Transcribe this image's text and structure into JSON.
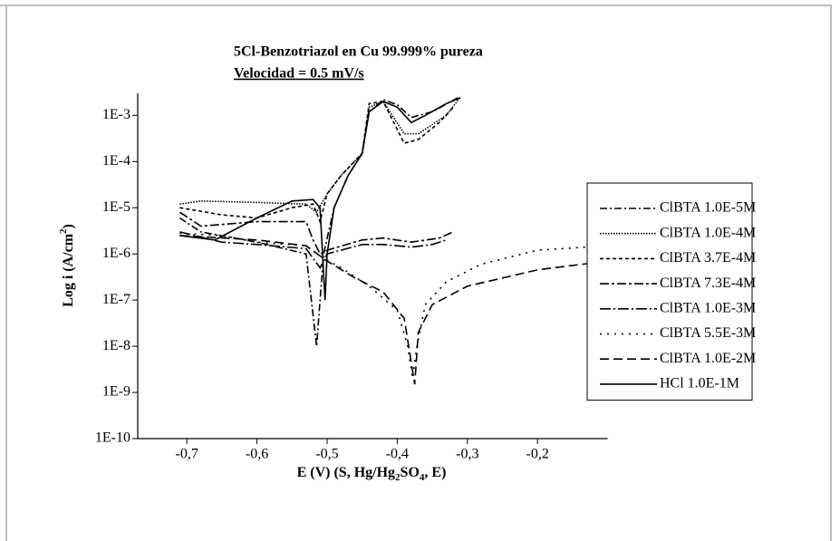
{
  "chart_data": {
    "type": "line",
    "title": "5Cl-Benzotriazol en Cu 99.999% pureza",
    "subtitle": "Velocidad = 0.5 mV/s",
    "xlabel": [
      "E (V) (S, Hg/Hg",
      "2",
      "SO",
      "4",
      ", E)"
    ],
    "ylabel": [
      "Log i (A/cm",
      "2",
      ")"
    ],
    "xlim": [
      -0.77,
      -0.1
    ],
    "ylim": [
      1e-10,
      0.003
    ],
    "log_y": true,
    "legend": "right",
    "xticks": [
      {
        "value": -0.7,
        "label": "-0,7"
      },
      {
        "value": -0.6,
        "label": "-0,6"
      },
      {
        "value": -0.5,
        "label": "-0,5"
      },
      {
        "value": -0.4,
        "label": "-0,4"
      },
      {
        "value": -0.3,
        "label": "-0,3"
      },
      {
        "value": -0.2,
        "label": "-0,2"
      }
    ],
    "yticks": [
      {
        "value": 0.001,
        "label": "1E-3"
      },
      {
        "value": 0.0001,
        "label": "1E-4"
      },
      {
        "value": 1e-05,
        "label": "1E-5"
      },
      {
        "value": 1e-06,
        "label": "1E-6"
      },
      {
        "value": 1e-07,
        "label": "1E-7"
      },
      {
        "value": 1e-08,
        "label": "1E-8"
      },
      {
        "value": 1e-09,
        "label": "1E-9"
      },
      {
        "value": 1e-10,
        "label": "1E-10"
      }
    ],
    "series": [
      {
        "name": "ClBTA 1.0E-5M",
        "color": "#000000",
        "dash": "8,3,2,3",
        "x": [
          -0.71,
          -0.68,
          -0.6,
          -0.53,
          -0.515,
          -0.505,
          -0.49,
          -0.47,
          -0.45,
          -0.44,
          -0.42,
          -0.4,
          -0.38,
          -0.35,
          -0.31
        ],
        "values": [
          6e-06,
          3e-06,
          1.8e-06,
          1e-06,
          1e-08,
          1e-06,
          1e-05,
          5e-05,
          0.00015,
          0.0012,
          0.0022,
          0.0017,
          0.0009,
          0.0012,
          0.0026
        ]
      },
      {
        "name": "ClBTA 1.0E-4M",
        "color": "#000000",
        "dash": "1.5,1.5",
        "x": [
          -0.71,
          -0.68,
          -0.6,
          -0.53,
          -0.515,
          -0.5,
          -0.48,
          -0.45,
          -0.44,
          -0.42,
          -0.39,
          -0.37,
          -0.33,
          -0.31
        ],
        "values": [
          1.2e-05,
          1.4e-05,
          1.3e-05,
          1.2e-05,
          8e-06,
          2e-05,
          5e-05,
          0.00015,
          0.0015,
          0.002,
          0.0004,
          0.0004,
          0.001,
          0.0025
        ]
      },
      {
        "name": "ClBTA 3.7E-4M",
        "color": "#000000",
        "dash": "4,3",
        "x": [
          -0.71,
          -0.65,
          -0.6,
          -0.55,
          -0.52,
          -0.51,
          -0.5,
          -0.48,
          -0.45,
          -0.44,
          -0.42,
          -0.39,
          -0.37,
          -0.34,
          -0.32
        ],
        "values": [
          1e-05,
          7e-06,
          6e-06,
          1e-05,
          1.2e-05,
          5e-06,
          2e-05,
          5e-05,
          0.00015,
          0.0018,
          0.002,
          0.00025,
          0.0003,
          0.0007,
          0.0015
        ]
      },
      {
        "name": "ClBTA 7.3E-4M",
        "color": "#000000",
        "dash": "10,3,3,3",
        "x": [
          -0.71,
          -0.68,
          -0.6,
          -0.53,
          -0.52,
          -0.51,
          -0.5,
          -0.45,
          -0.42,
          -0.38,
          -0.34,
          -0.32
        ],
        "values": [
          8e-06,
          4e-06,
          5e-06,
          5e-06,
          2e-06,
          1e-06,
          1.2e-06,
          2e-06,
          2.2e-06,
          1.8e-06,
          2.2e-06,
          3e-06
        ]
      },
      {
        "name": "ClBTA 1.0E-3M",
        "color": "#000000",
        "dash": "12,3,2,3",
        "x": [
          -0.71,
          -0.65,
          -0.6,
          -0.53,
          -0.52,
          -0.51,
          -0.5,
          -0.45,
          -0.42,
          -0.38,
          -0.35,
          -0.33
        ],
        "values": [
          3e-06,
          1.8e-06,
          1.6e-06,
          1.3e-06,
          8e-07,
          5e-07,
          1e-06,
          1.6e-06,
          1.6e-06,
          1.4e-06,
          1.6e-06,
          2e-06
        ]
      },
      {
        "name": "ClBTA 5.5E-3M",
        "color": "#000000",
        "dash": "2,6",
        "x": [
          -0.71,
          -0.65,
          -0.6,
          -0.53,
          -0.505,
          -0.48,
          -0.44,
          -0.4,
          -0.385,
          -0.378,
          -0.372,
          -0.36,
          -0.33,
          -0.28,
          -0.2,
          -0.1
        ],
        "values": [
          2.8e-06,
          2.5e-06,
          1.8e-06,
          1.5e-06,
          8e-07,
          5e-07,
          2e-07,
          6e-08,
          1e-08,
          2e-09,
          1e-08,
          8e-08,
          2.5e-07,
          6e-07,
          1.2e-06,
          1.5e-06
        ]
      },
      {
        "name": "ClBTA 1.0E-2M",
        "color": "#000000",
        "dash": "10,5",
        "x": [
          -0.71,
          -0.6,
          -0.53,
          -0.5,
          -0.46,
          -0.42,
          -0.39,
          -0.375,
          -0.37,
          -0.35,
          -0.3,
          -0.2,
          -0.1
        ],
        "values": [
          2.5e-06,
          2e-06,
          1.5e-06,
          7e-07,
          3e-07,
          1.5e-07,
          4e-08,
          1.5e-09,
          2e-08,
          8e-08,
          2e-07,
          4.5e-07,
          7e-07
        ]
      },
      {
        "name": "HCl 1.0E-1M",
        "color": "#000000",
        "dash": "none",
        "x": [
          -0.71,
          -0.66,
          -0.6,
          -0.55,
          -0.52,
          -0.51,
          -0.503,
          -0.5,
          -0.49,
          -0.47,
          -0.45,
          -0.44,
          -0.42,
          -0.4,
          -0.38,
          -0.36,
          -0.33,
          -0.31
        ],
        "values": [
          2.5e-06,
          2e-06,
          6e-06,
          1.4e-05,
          1.5e-05,
          1e-05,
          1e-07,
          1e-06,
          1e-05,
          5e-05,
          0.00015,
          0.0012,
          0.002,
          0.0015,
          0.0007,
          0.001,
          0.0018,
          0.0024
        ]
      }
    ]
  }
}
